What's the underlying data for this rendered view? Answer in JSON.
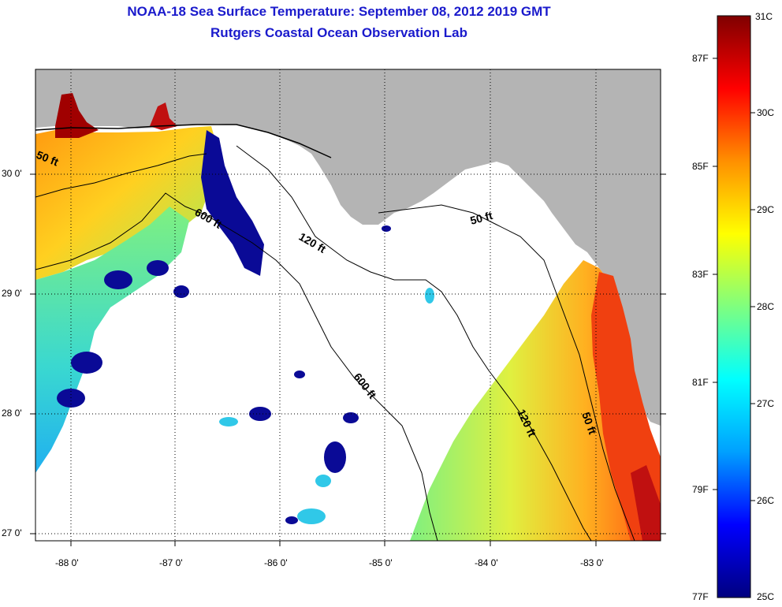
{
  "header": {
    "title": "NOAA-18 Sea Surface Temperature:  September 08, 2012 2019 GMT",
    "subtitle": "Rutgers Coastal Ocean Observation Lab"
  },
  "map": {
    "lat_ticks": [
      "30 0'",
      "29 0'",
      "28 0'",
      "27 0'"
    ],
    "lon_ticks": [
      "-88 0'",
      "-87 0'",
      "-86 0'",
      "-85 0'",
      "-84 0'",
      "-83 0'"
    ],
    "lat_range": [
      26.97,
      30.9
    ],
    "lon_range": [
      -88.33,
      -82.4
    ],
    "land_color": "#b4b4b4",
    "water_no_data_color": "#ffffff",
    "contours": [
      {
        "label": "50 ft"
      },
      {
        "label": "600 ft"
      },
      {
        "label": "120 ft"
      },
      {
        "label": "50 ft"
      },
      {
        "label": "600 ft"
      },
      {
        "label": "120 ft"
      },
      {
        "label": "50 ft"
      }
    ]
  },
  "colorbar": {
    "celsius_labels": [
      "31C",
      "30C",
      "29C",
      "28C",
      "27C",
      "26C",
      "25C"
    ],
    "fahrenheit_labels": [
      "87F",
      "85F",
      "83F",
      "81F",
      "79F",
      "77F"
    ],
    "range_c": [
      25,
      31
    ],
    "stops": [
      "#00007f",
      "#0000ff",
      "#00a0ff",
      "#00ffff",
      "#7fff7f",
      "#ffff00",
      "#ff9000",
      "#ff0000",
      "#7f0000"
    ]
  }
}
